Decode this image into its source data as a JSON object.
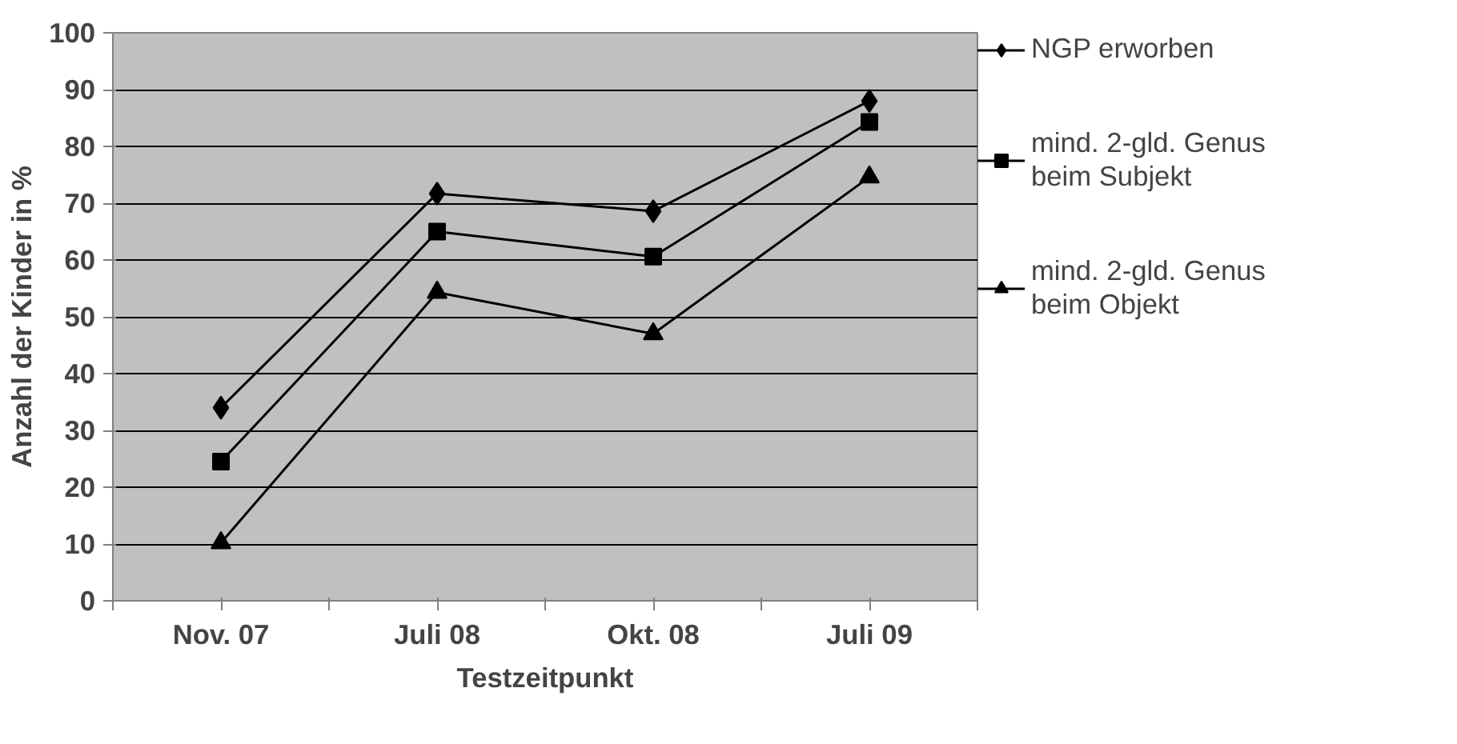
{
  "chart_data": {
    "type": "line",
    "xlabel": "Testzeitpunkt",
    "ylabel": "Anzahl der Kinder in %",
    "categories": [
      "Nov. 07",
      "Juli 08",
      "Okt. 08",
      "Juli 09"
    ],
    "series": [
      {
        "name": "NGP erworben",
        "color": "#000000",
        "marker": "diamond",
        "values": [
          34,
          71.7,
          68.6,
          88
        ]
      },
      {
        "name": "mind. 2-gld. Genus\nbeim Subjekt",
        "color": "#000000",
        "marker": "square",
        "values": [
          24.5,
          65,
          60.6,
          84.3
        ]
      },
      {
        "name": "mind. 2-gld. Genus\nbeim Objekt",
        "color": "#000000",
        "marker": "triangle",
        "values": [
          10.2,
          54.3,
          47,
          74.6
        ]
      }
    ],
    "ylim": [
      0,
      100
    ],
    "yticks": [
      0,
      10,
      20,
      30,
      40,
      50,
      60,
      70,
      80,
      90,
      100
    ],
    "grid": "y",
    "legend": "right",
    "line_style": "solid"
  }
}
